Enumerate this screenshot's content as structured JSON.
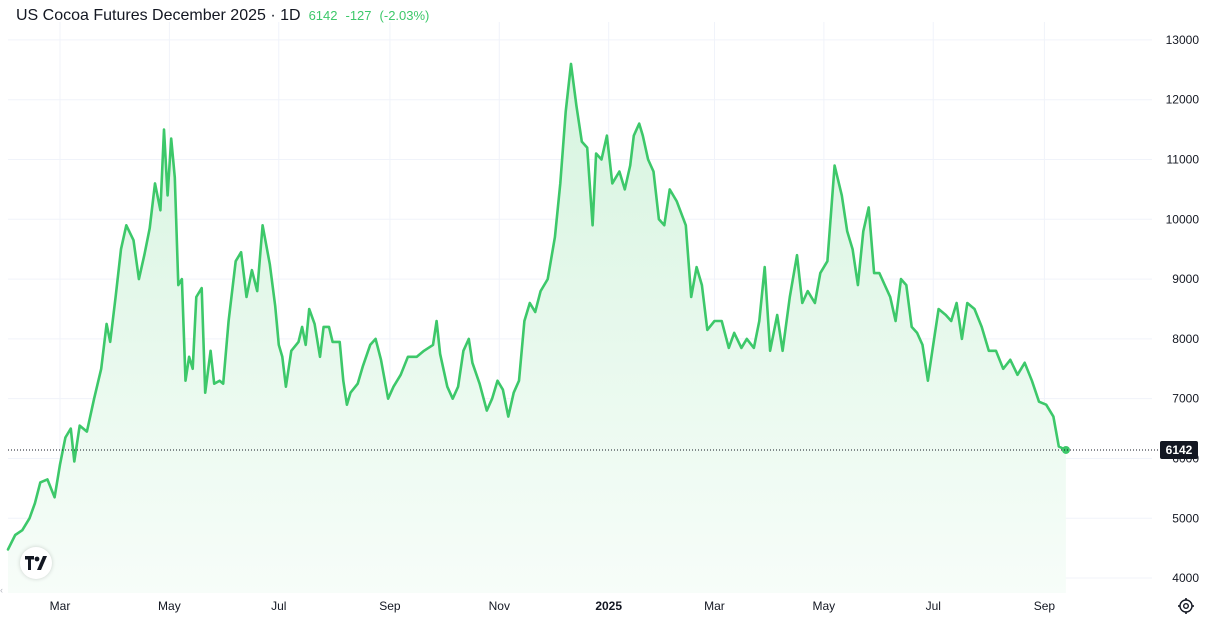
{
  "header": {
    "title": "US Cocoa Futures December 2025 · 1D",
    "last": "6142",
    "change": "-127",
    "change_pct": "(-2.03%)"
  },
  "icons": {
    "logo": "tradingview-logo-icon",
    "settings": "settings-gear-icon",
    "scroll_left": "chevron-left-icon"
  },
  "colors": {
    "line": "#3dc86a",
    "fill_top": "#d6f4df",
    "fill_bottom": "#f7fdf9",
    "price_label_bg": "#131722",
    "grid": "#f0f3fa",
    "quote": "#3dc86a"
  },
  "price_label": "6142",
  "chart_data": {
    "type": "area",
    "title": "US Cocoa Futures December 2025 · 1D",
    "xlabel": "",
    "ylabel": "",
    "grid": true,
    "y_axis_side": "right",
    "ylim": [
      3750,
      13300
    ],
    "y_ticks": [
      13000,
      12000,
      11000,
      10000,
      9000,
      8000,
      7000,
      6000,
      5000,
      4000
    ],
    "y_tick_labels": [
      "13000",
      "12000",
      "11000",
      "10000",
      "9000",
      "8000",
      "7000",
      "6000",
      "5000",
      "4000"
    ],
    "x_range": [
      "2024-02-01",
      "2025-10-31"
    ],
    "x_ticks": [
      {
        "date": "2024-03-01",
        "label": "Mar",
        "bold": false
      },
      {
        "date": "2024-05-01",
        "label": "May",
        "bold": false
      },
      {
        "date": "2024-07-01",
        "label": "Jul",
        "bold": false
      },
      {
        "date": "2024-09-01",
        "label": "Sep",
        "bold": false
      },
      {
        "date": "2024-11-01",
        "label": "Nov",
        "bold": false
      },
      {
        "date": "2025-01-01",
        "label": "2025",
        "bold": true
      },
      {
        "date": "2025-03-01",
        "label": "Mar",
        "bold": false
      },
      {
        "date": "2025-05-01",
        "label": "May",
        "bold": false
      },
      {
        "date": "2025-07-01",
        "label": "Jul",
        "bold": false
      },
      {
        "date": "2025-09-01",
        "label": "Sep",
        "bold": false
      }
    ],
    "last_value": 6142,
    "series": [
      {
        "points": [
          [
            "2024-02-01",
            4480
          ],
          [
            "2024-02-05",
            4720
          ],
          [
            "2024-02-09",
            4800
          ],
          [
            "2024-02-13",
            5000
          ],
          [
            "2024-02-16",
            5250
          ],
          [
            "2024-02-19",
            5600
          ],
          [
            "2024-02-23",
            5650
          ],
          [
            "2024-02-27",
            5350
          ],
          [
            "2024-03-01",
            5900
          ],
          [
            "2024-03-04",
            6350
          ],
          [
            "2024-03-07",
            6500
          ],
          [
            "2024-03-09",
            5950
          ],
          [
            "2024-03-12",
            6550
          ],
          [
            "2024-03-16",
            6450
          ],
          [
            "2024-03-20",
            7000
          ],
          [
            "2024-03-24",
            7500
          ],
          [
            "2024-03-27",
            8250
          ],
          [
            "2024-03-29",
            7950
          ],
          [
            "2024-04-01",
            8700
          ],
          [
            "2024-04-04",
            9500
          ],
          [
            "2024-04-07",
            9900
          ],
          [
            "2024-04-11",
            9650
          ],
          [
            "2024-04-14",
            9000
          ],
          [
            "2024-04-17",
            9400
          ],
          [
            "2024-04-20",
            9850
          ],
          [
            "2024-04-23",
            10600
          ],
          [
            "2024-04-26",
            10150
          ],
          [
            "2024-04-28",
            11500
          ],
          [
            "2024-04-30",
            10400
          ],
          [
            "2024-05-02",
            11350
          ],
          [
            "2024-05-04",
            10700
          ],
          [
            "2024-05-06",
            8900
          ],
          [
            "2024-05-08",
            9000
          ],
          [
            "2024-05-10",
            7300
          ],
          [
            "2024-05-12",
            7700
          ],
          [
            "2024-05-14",
            7500
          ],
          [
            "2024-05-16",
            8700
          ],
          [
            "2024-05-19",
            8850
          ],
          [
            "2024-05-21",
            7100
          ],
          [
            "2024-05-24",
            7800
          ],
          [
            "2024-05-26",
            7250
          ],
          [
            "2024-05-29",
            7300
          ],
          [
            "2024-05-31",
            7250
          ],
          [
            "2024-06-03",
            8300
          ],
          [
            "2024-06-07",
            9300
          ],
          [
            "2024-06-10",
            9450
          ],
          [
            "2024-06-13",
            8700
          ],
          [
            "2024-06-16",
            9150
          ],
          [
            "2024-06-19",
            8800
          ],
          [
            "2024-06-22",
            9900
          ],
          [
            "2024-06-26",
            9250
          ],
          [
            "2024-06-29",
            8550
          ],
          [
            "2024-07-01",
            7900
          ],
          [
            "2024-07-03",
            7700
          ],
          [
            "2024-07-05",
            7200
          ],
          [
            "2024-07-08",
            7800
          ],
          [
            "2024-07-12",
            7950
          ],
          [
            "2024-07-14",
            8200
          ],
          [
            "2024-07-16",
            7900
          ],
          [
            "2024-07-18",
            8500
          ],
          [
            "2024-07-21",
            8250
          ],
          [
            "2024-07-24",
            7700
          ],
          [
            "2024-07-26",
            8200
          ],
          [
            "2024-07-29",
            8200
          ],
          [
            "2024-07-31",
            7950
          ],
          [
            "2024-08-04",
            7950
          ],
          [
            "2024-08-06",
            7300
          ],
          [
            "2024-08-08",
            6900
          ],
          [
            "2024-08-10",
            7100
          ],
          [
            "2024-08-14",
            7250
          ],
          [
            "2024-08-17",
            7550
          ],
          [
            "2024-08-21",
            7900
          ],
          [
            "2024-08-24",
            8000
          ],
          [
            "2024-08-27",
            7650
          ],
          [
            "2024-08-31",
            7000
          ],
          [
            "2024-09-03",
            7200
          ],
          [
            "2024-09-07",
            7400
          ],
          [
            "2024-09-11",
            7700
          ],
          [
            "2024-09-16",
            7700
          ],
          [
            "2024-09-20",
            7800
          ],
          [
            "2024-09-25",
            7900
          ],
          [
            "2024-09-27",
            8300
          ],
          [
            "2024-09-29",
            7750
          ],
          [
            "2024-10-03",
            7200
          ],
          [
            "2024-10-06",
            7000
          ],
          [
            "2024-10-09",
            7200
          ],
          [
            "2024-10-12",
            7800
          ],
          [
            "2024-10-15",
            8000
          ],
          [
            "2024-10-17",
            7600
          ],
          [
            "2024-10-21",
            7250
          ],
          [
            "2024-10-25",
            6800
          ],
          [
            "2024-10-28",
            7000
          ],
          [
            "2024-10-31",
            7300
          ],
          [
            "2024-11-03",
            7150
          ],
          [
            "2024-11-06",
            6700
          ],
          [
            "2024-11-09",
            7100
          ],
          [
            "2024-11-12",
            7300
          ],
          [
            "2024-11-15",
            8300
          ],
          [
            "2024-11-18",
            8600
          ],
          [
            "2024-11-21",
            8450
          ],
          [
            "2024-11-24",
            8800
          ],
          [
            "2024-11-28",
            9000
          ],
          [
            "2024-12-02",
            9700
          ],
          [
            "2024-12-05",
            10600
          ],
          [
            "2024-12-08",
            11800
          ],
          [
            "2024-12-11",
            12600
          ],
          [
            "2024-12-14",
            11900
          ],
          [
            "2024-12-17",
            11300
          ],
          [
            "2024-12-20",
            11200
          ],
          [
            "2024-12-23",
            9900
          ],
          [
            "2024-12-25",
            11100
          ],
          [
            "2024-12-28",
            11000
          ],
          [
            "2024-12-31",
            11400
          ],
          [
            "2025-01-03",
            10600
          ],
          [
            "2025-01-07",
            10800
          ],
          [
            "2025-01-10",
            10500
          ],
          [
            "2025-01-13",
            10900
          ],
          [
            "2025-01-15",
            11400
          ],
          [
            "2025-01-18",
            11600
          ],
          [
            "2025-01-20",
            11400
          ],
          [
            "2025-01-23",
            11000
          ],
          [
            "2025-01-26",
            10800
          ],
          [
            "2025-01-29",
            10000
          ],
          [
            "2025-02-01",
            9900
          ],
          [
            "2025-02-04",
            10500
          ],
          [
            "2025-02-08",
            10300
          ],
          [
            "2025-02-13",
            9900
          ],
          [
            "2025-02-16",
            8700
          ],
          [
            "2025-02-19",
            9200
          ],
          [
            "2025-02-22",
            8900
          ],
          [
            "2025-02-25",
            8150
          ],
          [
            "2025-03-01",
            8300
          ],
          [
            "2025-03-05",
            8300
          ],
          [
            "2025-03-09",
            7850
          ],
          [
            "2025-03-12",
            8100
          ],
          [
            "2025-03-16",
            7850
          ],
          [
            "2025-03-19",
            8000
          ],
          [
            "2025-03-23",
            7850
          ],
          [
            "2025-03-26",
            8300
          ],
          [
            "2025-03-29",
            9200
          ],
          [
            "2025-04-01",
            7800
          ],
          [
            "2025-04-05",
            8400
          ],
          [
            "2025-04-08",
            7800
          ],
          [
            "2025-04-12",
            8700
          ],
          [
            "2025-04-16",
            9400
          ],
          [
            "2025-04-19",
            8600
          ],
          [
            "2025-04-22",
            8800
          ],
          [
            "2025-04-26",
            8600
          ],
          [
            "2025-04-29",
            9100
          ],
          [
            "2025-05-03",
            9300
          ],
          [
            "2025-05-07",
            10900
          ],
          [
            "2025-05-11",
            10400
          ],
          [
            "2025-05-14",
            9800
          ],
          [
            "2025-05-17",
            9500
          ],
          [
            "2025-05-20",
            8900
          ],
          [
            "2025-05-23",
            9800
          ],
          [
            "2025-05-26",
            10200
          ],
          [
            "2025-05-29",
            9100
          ],
          [
            "2025-06-01",
            9100
          ],
          [
            "2025-06-04",
            8900
          ],
          [
            "2025-06-07",
            8700
          ],
          [
            "2025-06-10",
            8300
          ],
          [
            "2025-06-13",
            9000
          ],
          [
            "2025-06-16",
            8900
          ],
          [
            "2025-06-19",
            8200
          ],
          [
            "2025-06-22",
            8100
          ],
          [
            "2025-06-25",
            7900
          ],
          [
            "2025-06-28",
            7300
          ],
          [
            "2025-07-01",
            7900
          ],
          [
            "2025-07-04",
            8500
          ],
          [
            "2025-07-08",
            8400
          ],
          [
            "2025-07-11",
            8300
          ],
          [
            "2025-07-14",
            8600
          ],
          [
            "2025-07-17",
            8000
          ],
          [
            "2025-07-20",
            8600
          ],
          [
            "2025-07-24",
            8500
          ],
          [
            "2025-07-28",
            8200
          ],
          [
            "2025-08-01",
            7800
          ],
          [
            "2025-08-05",
            7800
          ],
          [
            "2025-08-09",
            7500
          ],
          [
            "2025-08-13",
            7650
          ],
          [
            "2025-08-17",
            7400
          ],
          [
            "2025-08-21",
            7600
          ],
          [
            "2025-08-25",
            7300
          ],
          [
            "2025-08-29",
            6950
          ],
          [
            "2025-09-02",
            6900
          ],
          [
            "2025-09-06",
            6700
          ],
          [
            "2025-09-09",
            6200
          ],
          [
            "2025-09-13",
            6142
          ]
        ]
      }
    ]
  }
}
